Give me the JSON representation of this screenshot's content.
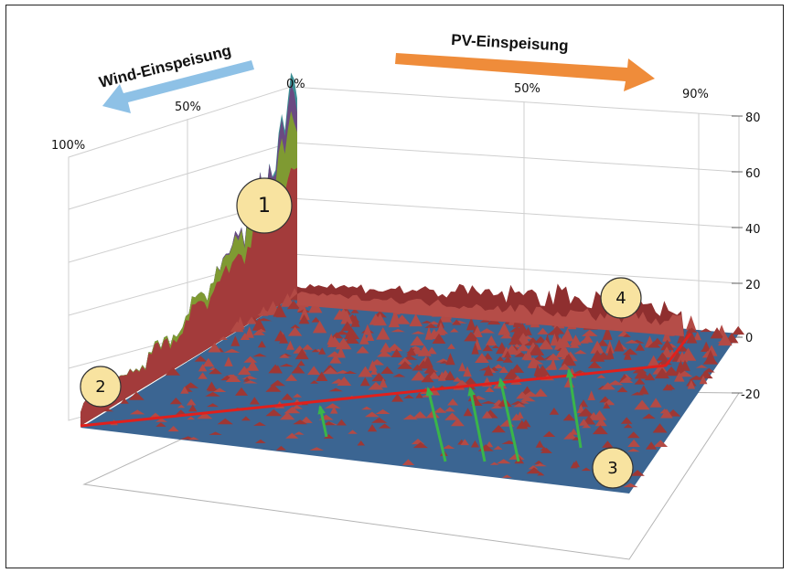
{
  "chart_data": {
    "type": "surface-3d",
    "wind_axis": {
      "title": "Wind-Einspeisung",
      "ticks": [
        "0%",
        "50%",
        "100%"
      ]
    },
    "pv_axis": {
      "title": "PV-Einspeisung",
      "ticks": [
        "50%",
        "90%"
      ]
    },
    "z_axis": {
      "ticks": [
        "80",
        "60",
        "40",
        "20",
        "0",
        "-20"
      ],
      "ylim": [
        -20,
        80
      ]
    },
    "markers": [
      "1",
      "2",
      "3",
      "4"
    ],
    "colors": {
      "base_plane": "#3b6592",
      "surface_low": "#a33b3b",
      "surface_mid": "#7f9a32",
      "surface_high": "#6a4a82",
      "surface_peak": "#3e8f95",
      "red_line": "#e0201c",
      "green_arrows": "#3ab54a",
      "wind_arrow": "#8ec1e6",
      "pv_arrow": "#ef8c3a",
      "marker_fill": "#f8e3a0"
    }
  }
}
